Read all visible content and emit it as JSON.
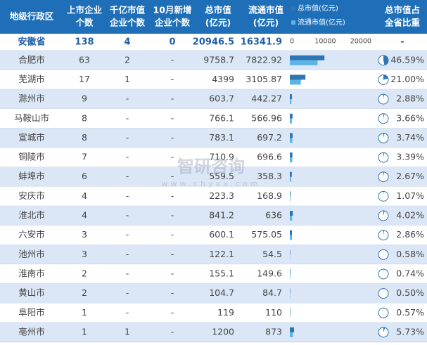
{
  "header": {
    "region": "地级行政区",
    "listed": [
      "上市企业",
      "个数"
    ],
    "trillion": [
      "千亿市值",
      "企业个数"
    ],
    "new": [
      "10月新增",
      "企业个数"
    ],
    "total": [
      "总市值",
      "(亿元)"
    ],
    "float": [
      "流通市值",
      "(亿元)"
    ],
    "share": [
      "总市值占",
      "全省比重"
    ]
  },
  "legend": [
    {
      "name": "总市值(亿元)",
      "color": "#2e75b6"
    },
    {
      "name": "流通市值(亿元)",
      "color": "#5db3e6"
    }
  ],
  "bar_axis": {
    "xlim": [
      0,
      23000
    ],
    "xticks": [
      0,
      10000,
      20000
    ]
  },
  "watermark": [
    "智研咨询",
    "www.chyxx.com"
  ],
  "rows": [
    {
      "region": "安徽省",
      "listed": 138,
      "trillion": 4,
      "new": 0,
      "total": 20946.5,
      "float": 16341.9,
      "share_label": "-"
    },
    {
      "region": "合肥市",
      "listed": 63,
      "trillion": 2,
      "new": "-",
      "total": 9758.7,
      "float": 7822.92,
      "share": 46.59,
      "share_label": "46.59%"
    },
    {
      "region": "芜湖市",
      "listed": 17,
      "trillion": 1,
      "new": "-",
      "total": 4399,
      "float": 3105.87,
      "share": 21.0,
      "share_label": "21.00%"
    },
    {
      "region": "滁州市",
      "listed": 9,
      "trillion": "-",
      "new": "-",
      "total": 603.7,
      "float": 442.27,
      "share": 2.88,
      "share_label": "2.88%"
    },
    {
      "region": "马鞍山市",
      "listed": 8,
      "trillion": "-",
      "new": "-",
      "total": 766.1,
      "float": 566.96,
      "share": 3.66,
      "share_label": "3.66%"
    },
    {
      "region": "宣城市",
      "listed": 8,
      "trillion": "-",
      "new": "-",
      "total": 783.1,
      "float": 697.2,
      "share": 3.74,
      "share_label": "3.74%"
    },
    {
      "region": "铜陵市",
      "listed": 7,
      "trillion": "-",
      "new": "-",
      "total": 710.9,
      "float": 696.6,
      "share": 3.39,
      "share_label": "3.39%"
    },
    {
      "region": "蚌埠市",
      "listed": 6,
      "trillion": "-",
      "new": "-",
      "total": 559.5,
      "float": 358.3,
      "share": 2.67,
      "share_label": "2.67%"
    },
    {
      "region": "安庆市",
      "listed": 4,
      "trillion": "-",
      "new": "-",
      "total": 223.3,
      "float": 168.9,
      "share": 1.07,
      "share_label": "1.07%"
    },
    {
      "region": "淮北市",
      "listed": 4,
      "trillion": "-",
      "new": "-",
      "total": 841.2,
      "float": 636,
      "share": 4.02,
      "share_label": "4.02%"
    },
    {
      "region": "六安市",
      "listed": 3,
      "trillion": "-",
      "new": "-",
      "total": 600.1,
      "float": 575.05,
      "share": 2.86,
      "share_label": "2.86%"
    },
    {
      "region": "池州市",
      "listed": 3,
      "trillion": "-",
      "new": "-",
      "total": 122.1,
      "float": 54.5,
      "share": 0.58,
      "share_label": "0.58%"
    },
    {
      "region": "淮南市",
      "listed": 2,
      "trillion": "-",
      "new": "-",
      "total": 155.1,
      "float": 149.6,
      "share": 0.74,
      "share_label": "0.74%"
    },
    {
      "region": "黄山市",
      "listed": 2,
      "trillion": "-",
      "new": "-",
      "total": 104.7,
      "float": 84.7,
      "share": 0.5,
      "share_label": "0.50%"
    },
    {
      "region": "阜阳市",
      "listed": 1,
      "trillion": "-",
      "new": "-",
      "total": 119,
      "float": 110,
      "share": 0.57,
      "share_label": "0.57%"
    },
    {
      "region": "亳州市",
      "listed": 1,
      "trillion": 1,
      "new": "-",
      "total": 1200,
      "float": 873,
      "share": 5.73,
      "share_label": "5.73%"
    }
  ]
}
